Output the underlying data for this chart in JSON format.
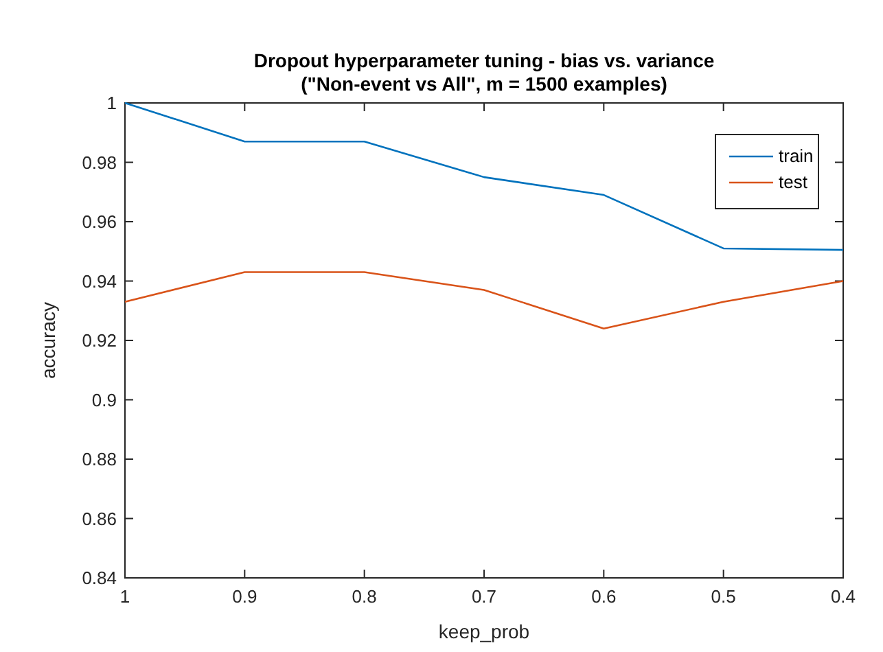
{
  "chart_data": {
    "type": "line",
    "title": "Dropout hyperparameter tuning - bias vs. variance\n(\"Non-event vs All\", m = 1500 examples)",
    "xlabel": "keep_prob",
    "ylabel": "accuracy",
    "x": [
      1,
      0.9,
      0.8,
      0.7,
      0.6,
      0.5,
      0.4
    ],
    "series": [
      {
        "name": "train",
        "color": "#0072bd",
        "values": [
          1,
          0.987,
          0.987,
          0.975,
          0.969,
          0.951,
          0.9505
        ]
      },
      {
        "name": "test",
        "color": "#d95319",
        "values": [
          0.933,
          0.943,
          0.943,
          0.937,
          0.924,
          0.933,
          0.94
        ]
      }
    ],
    "xlim": [
      1,
      0.4
    ],
    "xticks": [
      1,
      0.9,
      0.8,
      0.7,
      0.6,
      0.5,
      0.4
    ],
    "ylim": [
      0.84,
      1
    ],
    "yticks": [
      0.84,
      0.86,
      0.88,
      0.9,
      0.92,
      0.94,
      0.96,
      0.98,
      1
    ],
    "grid": false,
    "legend": "top right",
    "line_style": "solid",
    "marker": "none"
  }
}
